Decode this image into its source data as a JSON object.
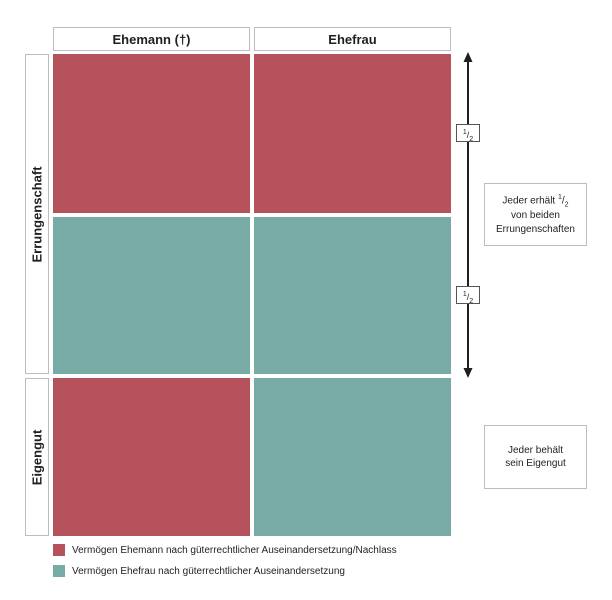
{
  "columns": {
    "husband": "Ehemann (†)",
    "wife": "Ehefrau"
  },
  "rows": {
    "acquired": "Errungenschaft",
    "own": "Eigengut"
  },
  "colors": {
    "husband": "#b5525b",
    "wife": "#78aba6"
  },
  "fraction": {
    "numerator": "1",
    "denominator": "2"
  },
  "notes": {
    "acquired": {
      "line1_prefix": "Jeder erhält",
      "line2": "von beiden",
      "line3": "Errungenschaften"
    },
    "own": {
      "line1": "Jeder behält",
      "line2": "sein Eigengut"
    }
  },
  "legend": [
    {
      "label": "Vermögen Ehemann nach güterrechtlicher Auseinandersetzung/Nachlass",
      "color": "#b5525b"
    },
    {
      "label": "Vermögen Ehefrau nach güterrechtlicher Auseinandersetzung",
      "color": "#78aba6"
    }
  ],
  "icons": {
    "arrow": "double-headed-vertical-arrow"
  }
}
